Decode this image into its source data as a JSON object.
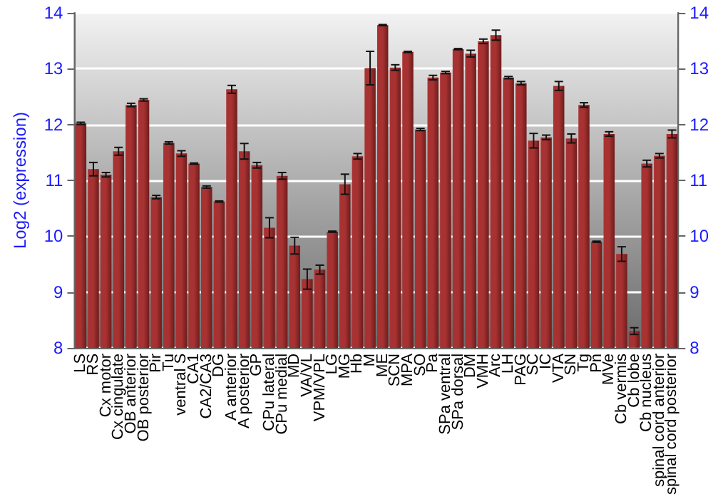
{
  "chart_data": {
    "type": "bar",
    "ylabel": "Log2 (expression)",
    "categories": [
      "LS",
      "RS",
      "Cx motor",
      "Cx cingulate",
      "OB anterior",
      "OB posterior",
      "Pir",
      "Tu",
      "ventral S",
      "CA1",
      "CA2/CA3",
      "DG",
      "A anterior",
      "A posterior",
      "GP",
      "CPu lateral",
      "CPu medial",
      "MD",
      "VA/VL",
      "VPM/VPL",
      "LG",
      "MG",
      "Hb",
      "M",
      "ME",
      "SCN",
      "MPA",
      "SO",
      "Pa",
      "SPa ventral",
      "SPa dorsal",
      "DM",
      "VMH",
      "Arc",
      "LH",
      "PAG",
      "SC",
      "IC",
      "VTA",
      "SN",
      "Tg",
      "Pn",
      "MVe",
      "Cb vermis",
      "Cb lobe",
      "Cb nucleus",
      "spinal cord anterior",
      "spinal cord posterior"
    ],
    "values": [
      12.02,
      11.2,
      11.1,
      11.52,
      12.35,
      12.44,
      10.7,
      11.67,
      11.48,
      11.3,
      10.88,
      10.62,
      12.63,
      11.52,
      11.27,
      10.15,
      11.08,
      9.83,
      9.23,
      9.4,
      10.08,
      10.93,
      11.43,
      13.01,
      13.78,
      13.02,
      13.3,
      11.91,
      12.84,
      12.93,
      13.35,
      13.27,
      13.49,
      13.6,
      12.84,
      12.74,
      11.71,
      11.77,
      12.69,
      11.75,
      12.35,
      9.9,
      11.83,
      9.68,
      8.3,
      11.3,
      11.44,
      11.83
    ],
    "errors": [
      0.02,
      0.12,
      0.04,
      0.07,
      0.03,
      0.02,
      0.03,
      0.02,
      0.05,
      0.01,
      0.02,
      0.01,
      0.07,
      0.14,
      0.05,
      0.18,
      0.06,
      0.15,
      0.18,
      0.08,
      0.01,
      0.18,
      0.05,
      0.3,
      0.01,
      0.05,
      0.01,
      0.02,
      0.04,
      0.02,
      0.01,
      0.06,
      0.04,
      0.09,
      0.02,
      0.03,
      0.13,
      0.04,
      0.08,
      0.08,
      0.04,
      0.01,
      0.04,
      0.13,
      0.06,
      0.06,
      0.04,
      0.07
    ],
    "color": "#a83232",
    "ylim": [
      8,
      14
    ],
    "yticks": [
      8,
      9,
      10,
      11,
      12,
      13,
      14
    ],
    "y2lim": [
      8,
      14
    ],
    "y2ticks": [
      8,
      9,
      10,
      11,
      12,
      13,
      14
    ],
    "grid": "y"
  }
}
